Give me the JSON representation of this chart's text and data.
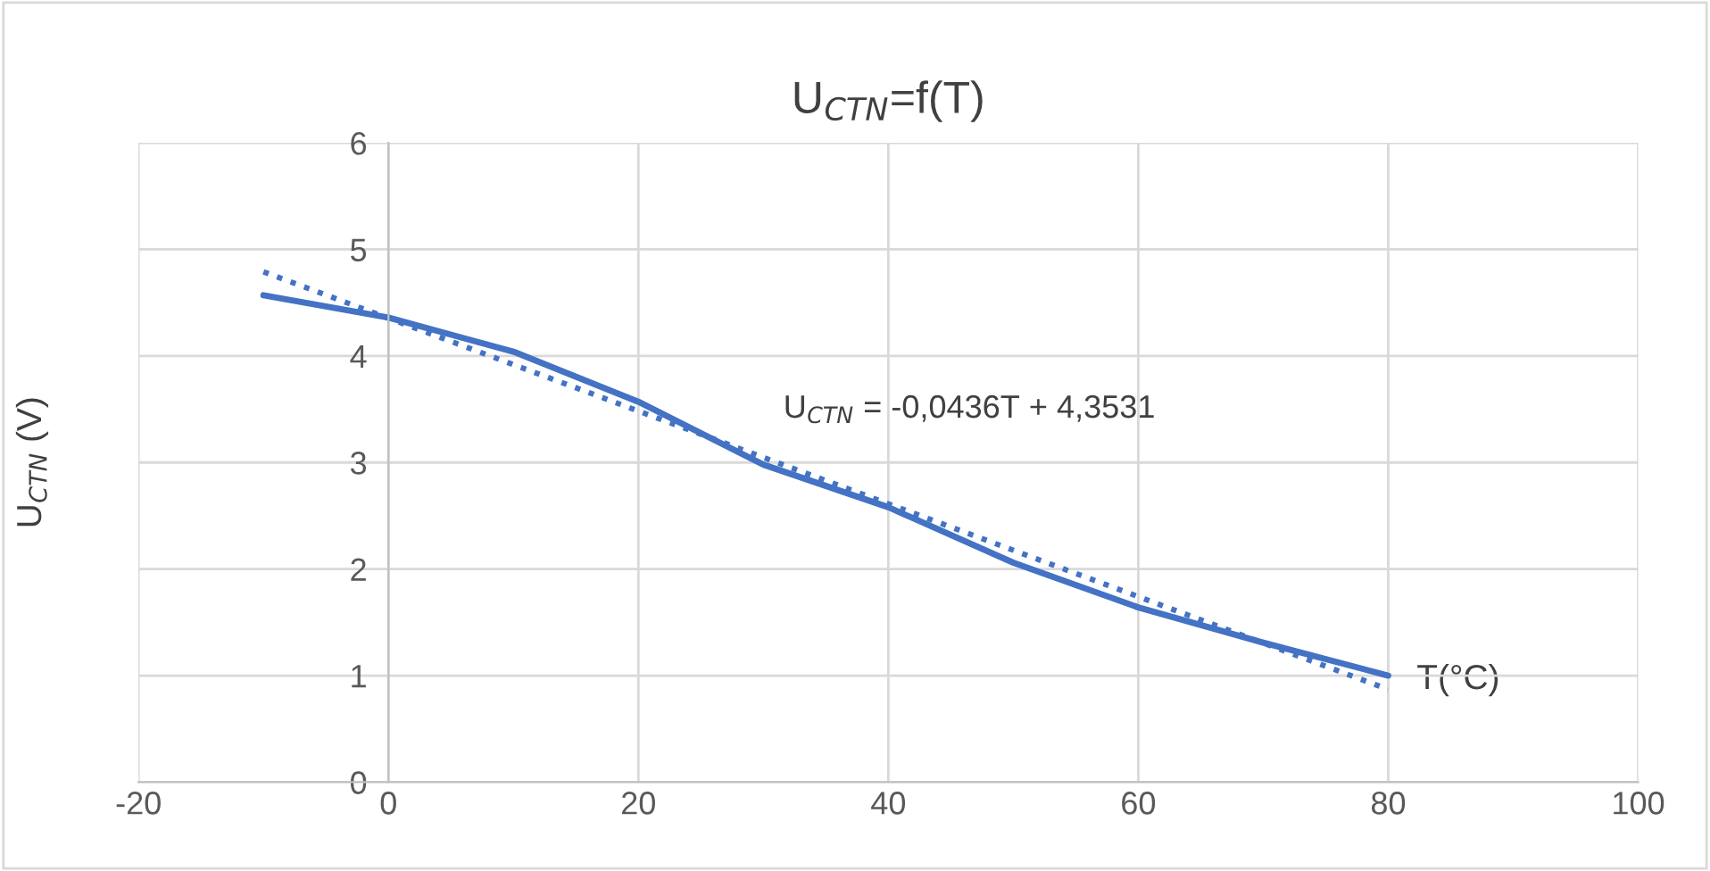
{
  "chart_data": {
    "type": "line",
    "title": "U$_{CTN}$=f(T)",
    "xlabel": "T(°C)",
    "ylabel": "U$_{CTN}$ (V)",
    "annotations": [
      "U$_{CTN}$ = -0,0436T + 4,3531"
    ],
    "series": [
      {
        "color": "#4472c4",
        "line_style": "solid",
        "x": [
          -10,
          0,
          10,
          20,
          30,
          40,
          50,
          60,
          70,
          80
        ],
        "values": [
          4.57,
          4.36,
          4.04,
          3.57,
          2.98,
          2.58,
          2.06,
          1.64,
          1.31,
          1.0
        ]
      },
      {
        "color": "#4472c4",
        "line_style": "dotted",
        "x": [
          -10,
          80
        ],
        "values": [
          4.79,
          0.87
        ]
      }
    ],
    "xlim": [
      -20,
      100
    ],
    "xticks": [
      -20,
      0,
      20,
      40,
      60,
      80,
      100
    ],
    "ylim": [
      0,
      6
    ],
    "yticks": [
      0,
      1,
      2,
      3,
      4,
      5,
      6
    ],
    "grid": true,
    "marker": "none"
  }
}
